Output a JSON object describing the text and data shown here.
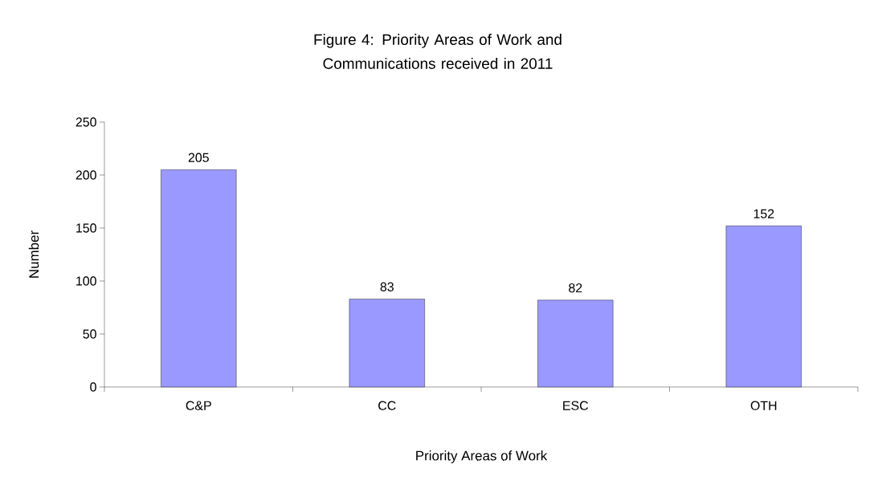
{
  "chart_data": {
    "type": "bar",
    "title": "Figure 4: Priority Areas of Work and Communications received in 2011",
    "xlabel": "Priority Areas of Work",
    "ylabel": "Number",
    "categories": [
      "C&P",
      "CC",
      "ESC",
      "OTH"
    ],
    "values": [
      205,
      83,
      82,
      152
    ],
    "color": "#9999ff",
    "ylim": [
      0,
      250
    ],
    "yticks": [
      0,
      50,
      100,
      150,
      200,
      250
    ],
    "data_labels": true,
    "grid": false
  }
}
